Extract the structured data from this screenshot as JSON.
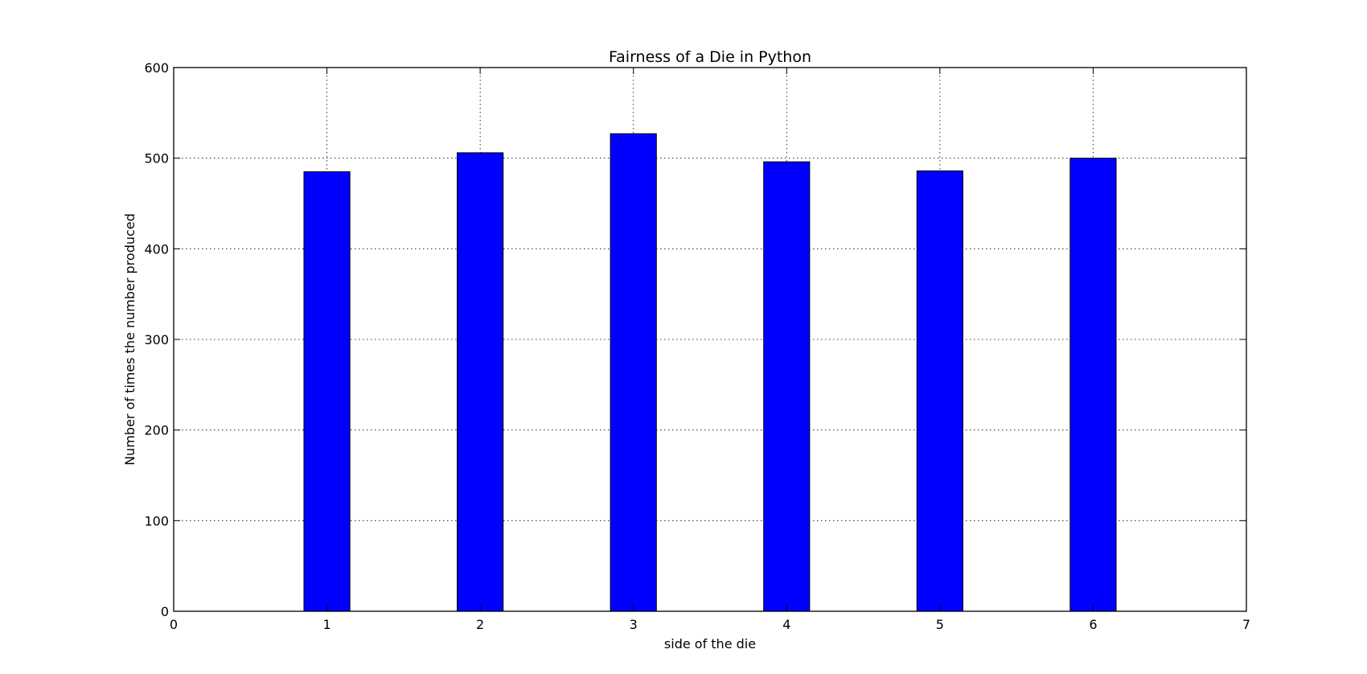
{
  "chart_data": {
    "type": "bar",
    "title": "Fairness of a Die in Python",
    "xlabel": "side of the die",
    "ylabel": "Number of times the number produced",
    "x": [
      1,
      2,
      3,
      4,
      5,
      6
    ],
    "values": [
      485,
      506,
      527,
      496,
      486,
      500
    ],
    "bar_width": 0.3,
    "xlim": [
      0,
      7
    ],
    "ylim": [
      0,
      600
    ],
    "xticks": [
      0,
      1,
      2,
      3,
      4,
      5,
      6,
      7
    ],
    "yticks": [
      0,
      100,
      200,
      300,
      400,
      500,
      600
    ],
    "grid": true,
    "bar_color": "#0000ff",
    "edge_color": "#000000"
  }
}
